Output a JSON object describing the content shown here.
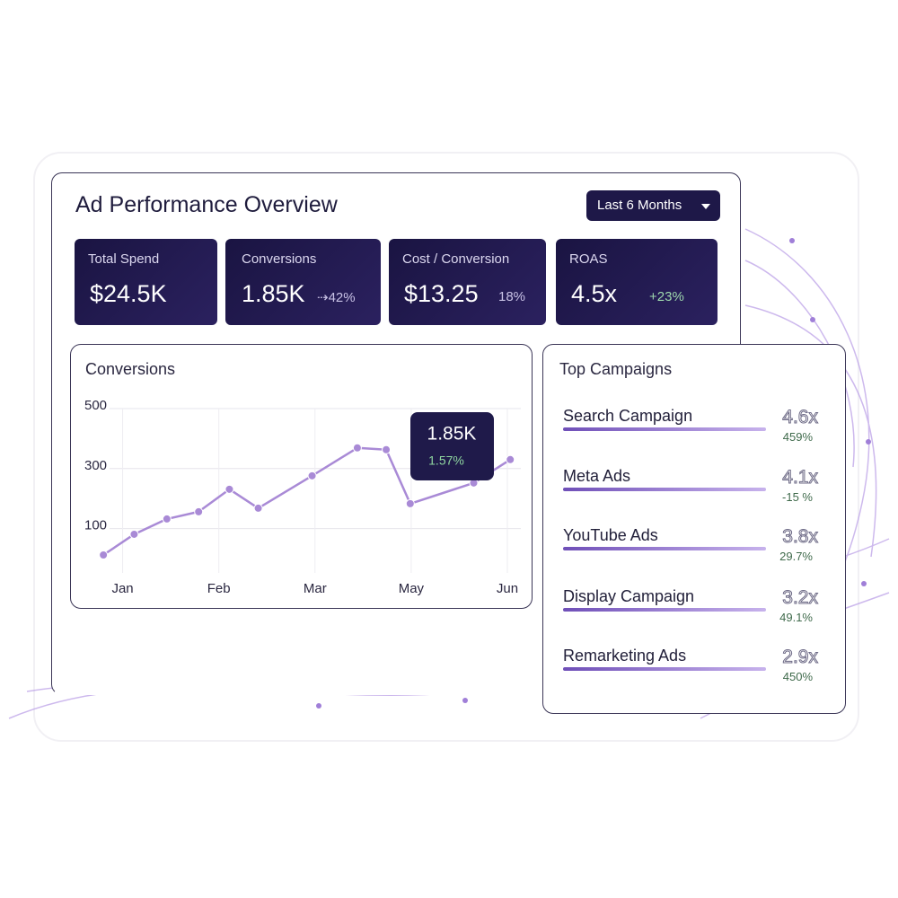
{
  "header": {
    "title": "Ad Performance Overview",
    "range_button": "Last 6 Months"
  },
  "kpis": [
    {
      "label": "Total Spend",
      "value": "$24.5K"
    },
    {
      "label": "Conversions",
      "value": "1.85K",
      "change": "⇢42%"
    },
    {
      "label": "Cost / Conversion",
      "value": "$13.25",
      "change": "18%"
    },
    {
      "label": "ROAS",
      "value": "4.5x",
      "change": "+23%"
    }
  ],
  "chart_data": {
    "type": "line",
    "title": "Conversions",
    "x": [
      -0.2,
      0.12,
      0.46,
      0.79,
      1.11,
      1.41,
      1.97,
      2.44,
      2.74,
      2.99,
      3.65,
      4.03
    ],
    "values": [
      3,
      72,
      123,
      147,
      222,
      159,
      267,
      360,
      354,
      174,
      243,
      321
    ],
    "color": "#a98ad6",
    "xlim": [
      -0.36,
      4.14
    ],
    "xticks": [
      {
        "value": 0,
        "label": "Jan"
      },
      {
        "value": 1,
        "label": "Feb"
      },
      {
        "value": 2,
        "label": "Mar"
      },
      {
        "value": 3,
        "label": "May"
      },
      {
        "value": 4,
        "label": "Jun"
      }
    ],
    "ylim": [
      0,
      500
    ],
    "yticks": [
      100,
      300,
      500
    ],
    "grid": true,
    "annotation": {
      "value": "1.85K",
      "change": "1.57%"
    }
  },
  "campaigns": {
    "title": "Top Campaigns",
    "rows": [
      {
        "name": "Search Campaign",
        "roas": "4.6x",
        "change": "459%"
      },
      {
        "name": "Meta Ads",
        "roas": "4.1x",
        "change": "-15 %"
      },
      {
        "name": "YouTube Ads",
        "roas": "3.8x",
        "change": "29.7%"
      },
      {
        "name": "Display Campaign",
        "roas": "3.2x",
        "change": "49.1%"
      },
      {
        "name": "Remarketing Ads",
        "roas": "2.9x",
        "change": "450%"
      }
    ]
  }
}
